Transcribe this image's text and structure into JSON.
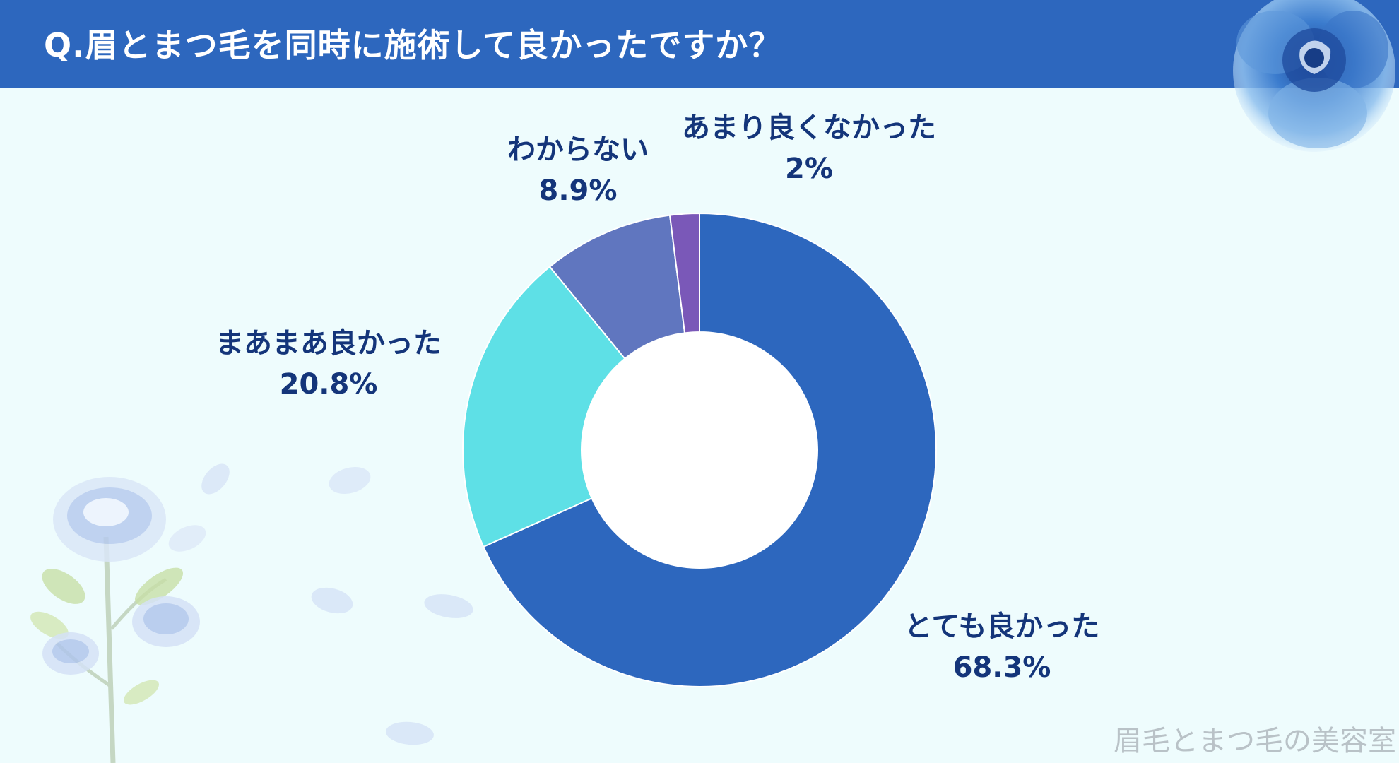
{
  "title": "Q.眉とまつ毛を同時に施術して良かったですか？",
  "watermark": "眉毛とまつ毛の美容室",
  "chart_data": {
    "type": "pie",
    "donut": true,
    "title": "Q.眉とまつ毛を同時に施術して良かったですか？",
    "slices": [
      {
        "label": "とても良かった",
        "value": 68.3,
        "display": "68.3%",
        "color": "#2d67be"
      },
      {
        "label": "まあまあ良かった",
        "value": 20.8,
        "display": "20.8%",
        "color": "#5ee0e6"
      },
      {
        "label": "わからない",
        "value": 8.9,
        "display": "8.9%",
        "color": "#6076bf"
      },
      {
        "label": "あまり良くなかった",
        "value": 2,
        "display": "2%",
        "color": "#7a58b8"
      }
    ]
  }
}
